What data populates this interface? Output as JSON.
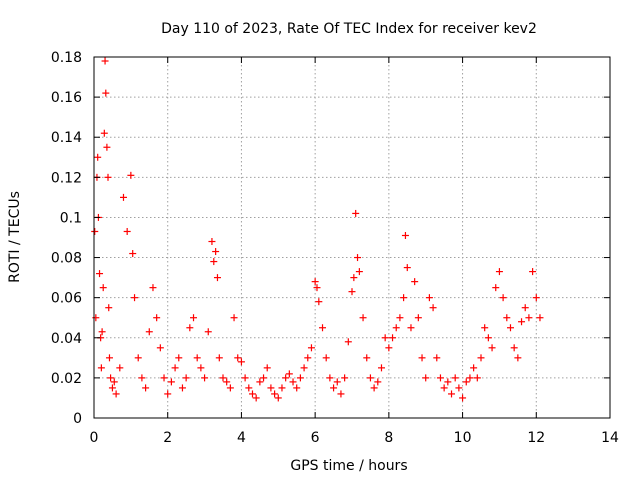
{
  "chart_data": {
    "type": "scatter",
    "title": "Day 110 of 2023, Rate Of TEC Index for receiver kev2",
    "xlabel": "GPS time / hours",
    "ylabel": "ROTI / TECUs",
    "xlim": [
      0,
      14
    ],
    "ylim": [
      0,
      0.18
    ],
    "xticks": [
      "0",
      "2",
      "4",
      "6",
      "8",
      "10",
      "12",
      "14"
    ],
    "yticks": [
      "0",
      "0.02",
      "0.04",
      "0.06",
      "0.08",
      "0.1",
      "0.12",
      "0.14",
      "0.16",
      "0.18"
    ],
    "grid": true,
    "marker": "+",
    "color": "#ff0000",
    "series": [
      {
        "x": [
          0.02,
          0.05,
          0.08,
          0.1,
          0.12,
          0.15,
          0.18,
          0.2,
          0.22,
          0.25,
          0.28,
          0.3,
          0.32,
          0.35,
          0.38,
          0.4,
          0.42,
          0.45,
          0.5,
          0.55,
          0.6,
          0.7,
          0.8,
          0.9,
          1.0,
          1.05,
          1.1,
          1.2,
          1.3,
          1.4,
          1.5,
          1.6,
          1.7,
          1.8,
          1.9,
          2.0,
          2.1,
          2.2,
          2.3,
          2.4,
          2.5,
          2.6,
          2.7,
          2.8,
          2.9,
          3.0,
          3.1,
          3.2,
          3.25,
          3.3,
          3.35,
          3.4,
          3.5,
          3.6,
          3.7,
          3.8,
          3.9,
          4.0,
          4.1,
          4.2,
          4.3,
          4.4,
          4.5,
          4.6,
          4.7,
          4.8,
          4.9,
          5.0,
          5.1,
          5.2,
          5.3,
          5.4,
          5.5,
          5.6,
          5.7,
          5.8,
          5.9,
          6.0,
          6.05,
          6.1,
          6.2,
          6.3,
          6.4,
          6.5,
          6.6,
          6.7,
          6.8,
          6.9,
          7.0,
          7.05,
          7.1,
          7.15,
          7.2,
          7.3,
          7.4,
          7.5,
          7.6,
          7.7,
          7.8,
          7.9,
          8.0,
          8.1,
          8.2,
          8.3,
          8.4,
          8.45,
          8.5,
          8.6,
          8.7,
          8.8,
          8.9,
          9.0,
          9.1,
          9.2,
          9.3,
          9.4,
          9.5,
          9.6,
          9.7,
          9.8,
          9.9,
          10.0,
          10.1,
          10.2,
          10.3,
          10.4,
          10.5,
          10.6,
          10.7,
          10.8,
          10.9,
          11.0,
          11.1,
          11.2,
          11.3,
          11.4,
          11.5,
          11.6,
          11.7,
          11.8,
          11.9,
          12.0,
          12.1
        ],
        "y": [
          0.093,
          0.05,
          0.12,
          0.13,
          0.1,
          0.072,
          0.04,
          0.025,
          0.043,
          0.065,
          0.142,
          0.178,
          0.162,
          0.135,
          0.12,
          0.055,
          0.03,
          0.02,
          0.015,
          0.018,
          0.012,
          0.025,
          0.11,
          0.093,
          0.121,
          0.082,
          0.06,
          0.03,
          0.02,
          0.015,
          0.043,
          0.065,
          0.05,
          0.035,
          0.02,
          0.012,
          0.018,
          0.025,
          0.03,
          0.015,
          0.02,
          0.045,
          0.05,
          0.03,
          0.025,
          0.02,
          0.043,
          0.088,
          0.078,
          0.083,
          0.07,
          0.03,
          0.02,
          0.018,
          0.015,
          0.05,
          0.03,
          0.028,
          0.02,
          0.015,
          0.012,
          0.01,
          0.018,
          0.02,
          0.025,
          0.015,
          0.012,
          0.01,
          0.015,
          0.02,
          0.022,
          0.018,
          0.015,
          0.02,
          0.025,
          0.03,
          0.035,
          0.068,
          0.065,
          0.058,
          0.045,
          0.03,
          0.02,
          0.015,
          0.018,
          0.012,
          0.02,
          0.038,
          0.063,
          0.07,
          0.102,
          0.08,
          0.073,
          0.05,
          0.03,
          0.02,
          0.015,
          0.018,
          0.025,
          0.04,
          0.035,
          0.04,
          0.045,
          0.05,
          0.06,
          0.091,
          0.075,
          0.045,
          0.068,
          0.05,
          0.03,
          0.02,
          0.06,
          0.055,
          0.03,
          0.02,
          0.015,
          0.018,
          0.012,
          0.02,
          0.015,
          0.01,
          0.018,
          0.02,
          0.025,
          0.02,
          0.03,
          0.045,
          0.04,
          0.035,
          0.065,
          0.073,
          0.06,
          0.05,
          0.045,
          0.035,
          0.03,
          0.048,
          0.055,
          0.05,
          0.073,
          0.06,
          0.05
        ]
      }
    ]
  }
}
